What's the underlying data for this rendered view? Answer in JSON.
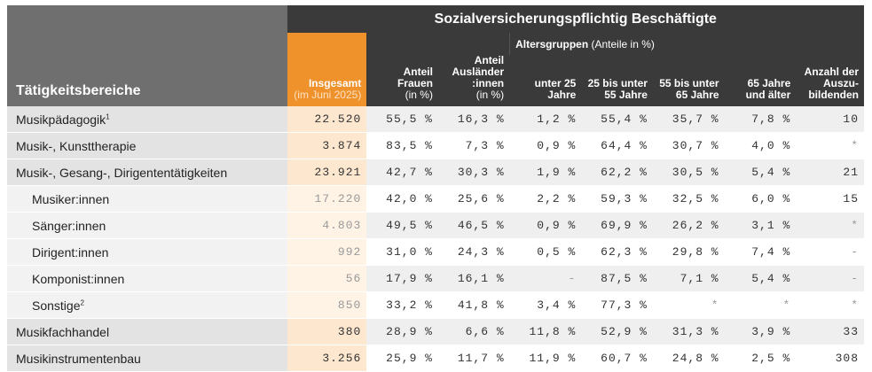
{
  "header": {
    "title": "Sozialversicherungspflichtig Beschäftigte",
    "area_label": "Tätigkeitsbereiche",
    "total_label": "Insgesamt",
    "total_sub": "(im Juni 2025)",
    "women_label": "Anteil Frauen",
    "women_sub": "(in %)",
    "foreign_label": "Anteil Ausländer :innen",
    "foreign_sub": "(in %)",
    "age_group_label": "Altersgruppen",
    "age_group_note": "(Anteile in %)",
    "age_1": "unter 25 Jahre",
    "age_2": "25 bis unter 55 Jahre",
    "age_3": "55 bis unter 65 Jahre",
    "age_4": "65 Jahre und älter",
    "trainees_label": "Anzahl der Auszu-bildenden"
  },
  "rows": [
    {
      "area": "Musikpädagogik",
      "sup": "1",
      "level": 1,
      "total": "22.520",
      "women": "55,5 %",
      "foreign": "16,3 %",
      "u25": "1,2 %",
      "a25_55": "55,4 %",
      "a55_65": "35,7 %",
      "a65": "7,8 %",
      "trainees": "10"
    },
    {
      "area": "Musik-, Kunsttherapie",
      "sup": "",
      "level": 1,
      "total": "3.874",
      "women": "83,5 %",
      "foreign": "7,3 %",
      "u25": "0,9 %",
      "a25_55": "64,4 %",
      "a55_65": "30,7 %",
      "a65": "4,0 %",
      "trainees": "*"
    },
    {
      "area": "Musik-, Gesang-, Dirigententätigkeiten",
      "sup": "",
      "level": 1,
      "total": "23.921",
      "women": "42,7 %",
      "foreign": "30,3 %",
      "u25": "1,9 %",
      "a25_55": "62,2 %",
      "a55_65": "30,5 %",
      "a65": "5,4 %",
      "trainees": "21"
    },
    {
      "area": "Musiker:innen",
      "sup": "",
      "level": 2,
      "total": "17.220",
      "women": "42,0 %",
      "foreign": "25,6 %",
      "u25": "2,2 %",
      "a25_55": "59,3 %",
      "a55_65": "32,5 %",
      "a65": "6,0 %",
      "trainees": "15"
    },
    {
      "area": "Sänger:innen",
      "sup": "",
      "level": 2,
      "total": "4.803",
      "women": "49,5 %",
      "foreign": "46,5 %",
      "u25": "0,9 %",
      "a25_55": "69,9 %",
      "a55_65": "26,2 %",
      "a65": "3,1 %",
      "trainees": "*"
    },
    {
      "area": "Dirigent:innen",
      "sup": "",
      "level": 2,
      "total": "992",
      "women": "31,0 %",
      "foreign": "24,3 %",
      "u25": "0,5 %",
      "a25_55": "62,3 %",
      "a55_65": "29,8 %",
      "a65": "7,4 %",
      "trainees": "-"
    },
    {
      "area": "Komponist:innen",
      "sup": "",
      "level": 2,
      "total": "56",
      "women": "17,9 %",
      "foreign": "16,1 %",
      "u25": "-",
      "a25_55": "87,5 %",
      "a55_65": "7,1 %",
      "a65": "5,4 %",
      "trainees": "-"
    },
    {
      "area": "Sonstige",
      "sup": "2",
      "level": 2,
      "total": "850",
      "women": "33,2 %",
      "foreign": "41,8 %",
      "u25": "3,4 %",
      "a25_55": "77,3 %",
      "a55_65": "*",
      "a65": "*",
      "trainees": "*"
    },
    {
      "area": "Musikfachhandel",
      "sup": "",
      "level": 1,
      "total": "380",
      "women": "28,9 %",
      "foreign": "6,6 %",
      "u25": "11,8 %",
      "a25_55": "52,9 %",
      "a55_65": "31,3 %",
      "a65": "3,9 %",
      "trainees": "33"
    },
    {
      "area": "Musikinstrumentenbau",
      "sup": "",
      "level": 1,
      "total": "3.256",
      "women": "25,9 %",
      "foreign": "11,7 %",
      "u25": "11,9 %",
      "a25_55": "60,7 %",
      "a55_65": "24,8 %",
      "a65": "2,5 %",
      "trainees": "308"
    }
  ],
  "colors": {
    "header_dark": "#3a3a3a",
    "header_gray": "#6f6f6f",
    "accent_orange": "#f0922b",
    "total_column": "#fde7cf"
  }
}
